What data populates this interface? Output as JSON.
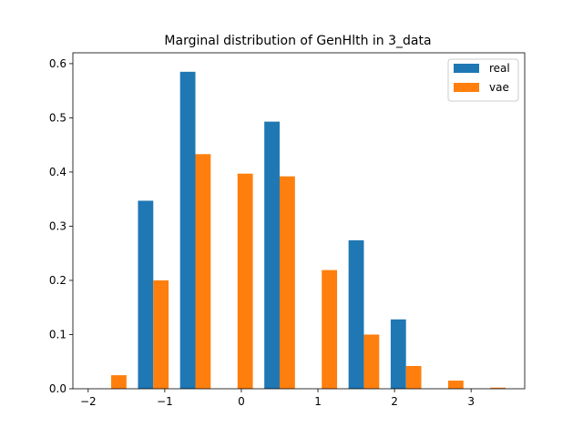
{
  "chart_data": {
    "type": "bar",
    "title": "Marginal distribution of GenHlth in 3_data",
    "xlabel": "",
    "ylabel": "",
    "xlim": [
      -2.2,
      3.7
    ],
    "ylim": [
      0,
      0.62
    ],
    "bar_width": 0.2,
    "x_ticks": [
      -2,
      -1,
      0,
      1,
      2,
      3
    ],
    "x_tick_labels": [
      "−2",
      "−1",
      "0",
      "1",
      "2",
      "3"
    ],
    "y_ticks": [
      0.0,
      0.1,
      0.2,
      0.3,
      0.4,
      0.5,
      0.6
    ],
    "y_tick_labels": [
      "0.0",
      "0.1",
      "0.2",
      "0.3",
      "0.4",
      "0.5",
      "0.6"
    ],
    "legend_position": "top-right",
    "series": [
      {
        "name": "real",
        "color": "#1f77b4",
        "x": [
          -1.8,
          -1.25,
          -0.7,
          -0.15,
          0.4,
          0.95,
          1.5,
          2.05,
          2.6,
          3.15
        ],
        "values": [
          0.0,
          0.347,
          0.585,
          0.0,
          0.493,
          0.0,
          0.274,
          0.128,
          0.0,
          0.0
        ]
      },
      {
        "name": "vae",
        "color": "#ff7f0e",
        "x": [
          -1.6,
          -1.05,
          -0.5,
          0.05,
          0.6,
          1.15,
          1.7,
          2.25,
          2.8,
          3.35
        ],
        "values": [
          0.025,
          0.2,
          0.433,
          0.397,
          0.392,
          0.219,
          0.1,
          0.042,
          0.015,
          0.002
        ]
      }
    ]
  }
}
